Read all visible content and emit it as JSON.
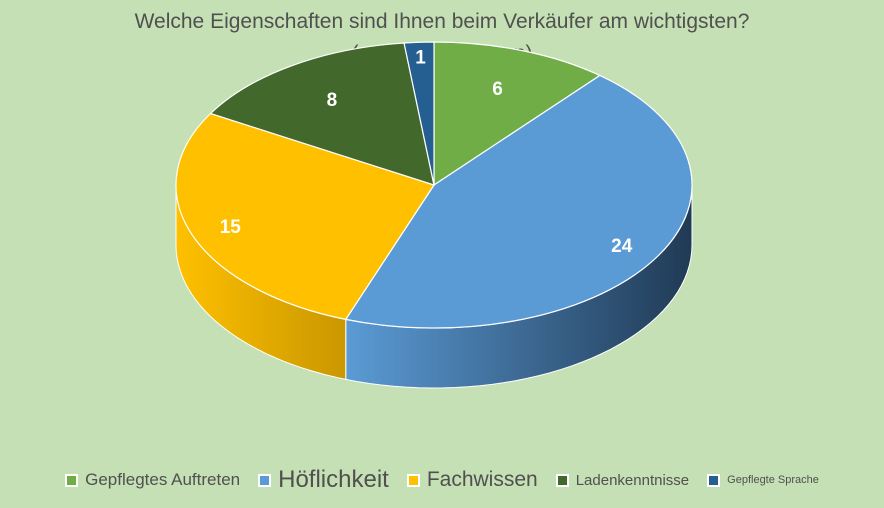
{
  "chart_data": {
    "type": "pie",
    "title": "Welche Eigenschaften sind Ihnen beim Verkäufer am wichtigsten?",
    "subtitle": "(max. 2 ankreuzen)",
    "three_d": true,
    "legend_position": "bottom",
    "start": "top (12 o'clock), clockwise",
    "slices": [
      {
        "label": "Gepflegtes Auftreten",
        "value": 6,
        "color": "#70ad47",
        "side_color": "#4e7a31"
      },
      {
        "label": "Höflichkeit",
        "value": 24,
        "color": "#5b9bd5",
        "side_color": "#203a55"
      },
      {
        "label": "Fachwissen",
        "value": 15,
        "color": "#ffc000",
        "side_color": "#c99700"
      },
      {
        "label": "Ladenkenntnisse",
        "value": 8,
        "color": "#43682b",
        "side_color": "#2c4520"
      },
      {
        "label": "Gepflegte Sprache",
        "value": 1,
        "color": "#255e91",
        "side_color": "#173c5d"
      }
    ]
  }
}
